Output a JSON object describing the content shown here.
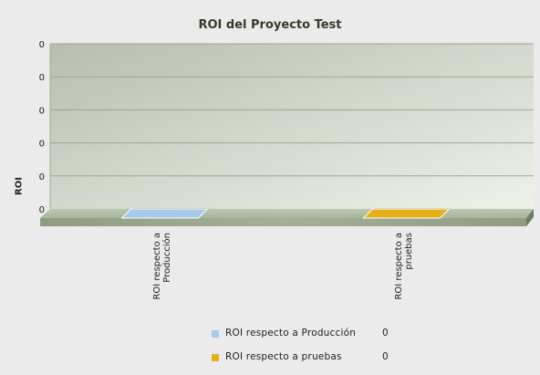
{
  "chart_data": {
    "type": "bar",
    "title": "ROI del Proyecto Test",
    "ylabel": "ROI",
    "xlabel": "",
    "y_tick_labels": [
      "0",
      "0",
      "0",
      "0",
      "0",
      "0"
    ],
    "categories": [
      "ROI respecto a Producción",
      "ROI respecto a pruebas"
    ],
    "category_label_lines": [
      [
        "ROI respecto a",
        "Producción"
      ],
      [
        "ROI respecto a",
        "pruebas"
      ]
    ],
    "values": [
      0,
      0
    ],
    "colors": [
      "#a9c9ea",
      "#e8b018"
    ],
    "grid": true,
    "legend_position": "bottom",
    "legend": [
      {
        "label": "ROI respecto a Producción",
        "value": "0",
        "color": "#a9c9ea"
      },
      {
        "label": "ROI respecto a pruebas",
        "value": "0",
        "color": "#e8b018"
      }
    ]
  }
}
